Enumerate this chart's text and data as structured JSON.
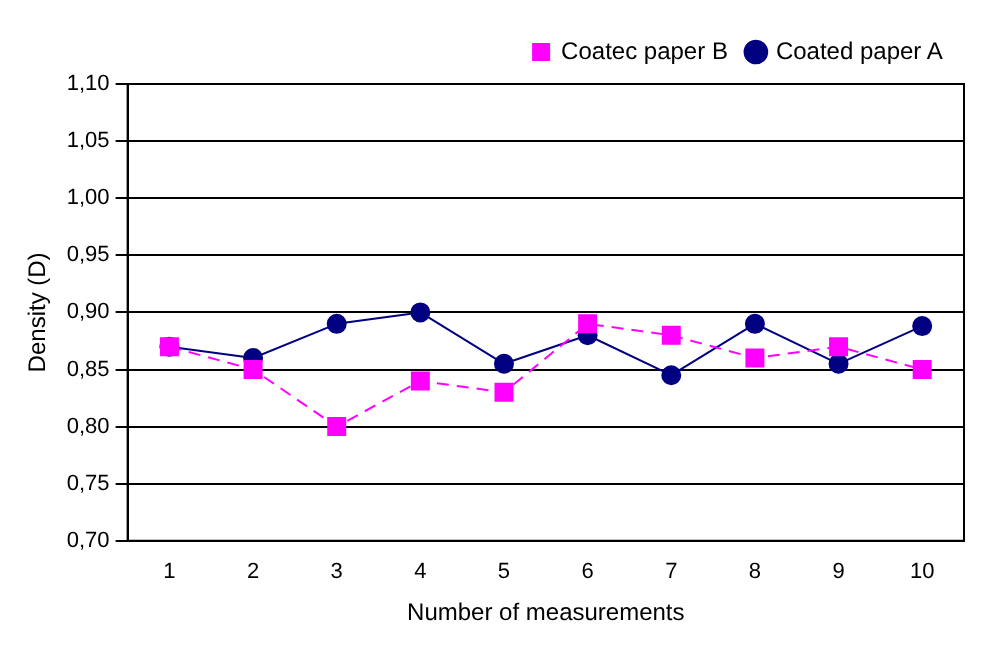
{
  "chart_data": {
    "type": "line",
    "xlabel": "Number of measurements",
    "ylabel": "Density (D)",
    "categories": [
      "1",
      "2",
      "3",
      "4",
      "5",
      "6",
      "7",
      "8",
      "9",
      "10"
    ],
    "series": [
      {
        "name": "Coated paper A",
        "color": "#000080",
        "marker": "circle",
        "line_style": "solid",
        "values": [
          0.87,
          0.86,
          0.89,
          0.9,
          0.855,
          0.88,
          0.845,
          0.89,
          0.855,
          0.888
        ]
      },
      {
        "name": "Coatec paper B",
        "color": "#ff00ff",
        "marker": "square",
        "line_style": "dashed",
        "values": [
          0.87,
          0.85,
          0.8,
          0.84,
          0.83,
          0.89,
          0.88,
          0.86,
          0.87,
          0.85
        ]
      }
    ],
    "ylim": [
      0.7,
      1.1
    ],
    "yticks": [
      {
        "value": 0.7,
        "label": "0,70"
      },
      {
        "value": 0.75,
        "label": "0,75"
      },
      {
        "value": 0.8,
        "label": "0,80"
      },
      {
        "value": 0.85,
        "label": "0,85"
      },
      {
        "value": 0.9,
        "label": "0,90"
      },
      {
        "value": 0.95,
        "label": "0,95"
      },
      {
        "value": 1.0,
        "label": "1,00"
      },
      {
        "value": 1.05,
        "label": "1,05"
      },
      {
        "value": 1.1,
        "label": "1,10"
      }
    ],
    "grid": "y",
    "legend": "top right"
  }
}
